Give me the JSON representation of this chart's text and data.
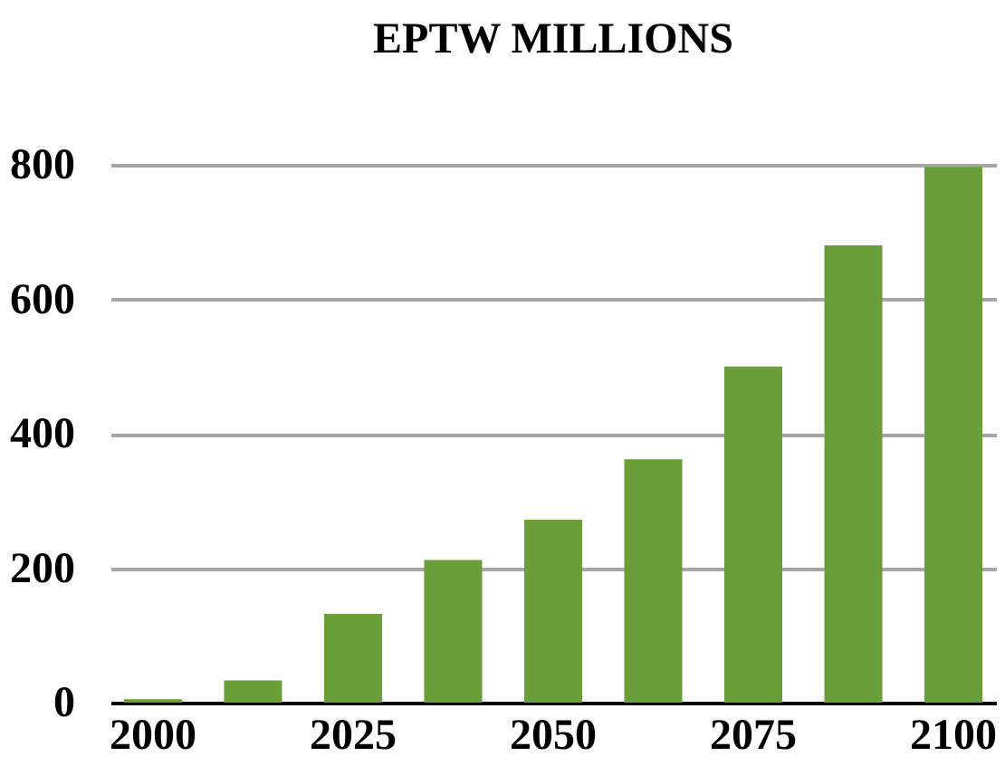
{
  "chart_data": {
    "type": "bar",
    "title": "EPTW MILLIONS",
    "categories": [
      "2000",
      null,
      "2025",
      null,
      "2050",
      null,
      "2075",
      null,
      "2100"
    ],
    "values": [
      5,
      33,
      132,
      212,
      272,
      362,
      500,
      680,
      797
    ],
    "color": "#6a9e38",
    "ylim": [
      0,
      800
    ],
    "yticks": [
      0,
      200,
      400,
      600,
      800
    ],
    "grid": "y"
  }
}
